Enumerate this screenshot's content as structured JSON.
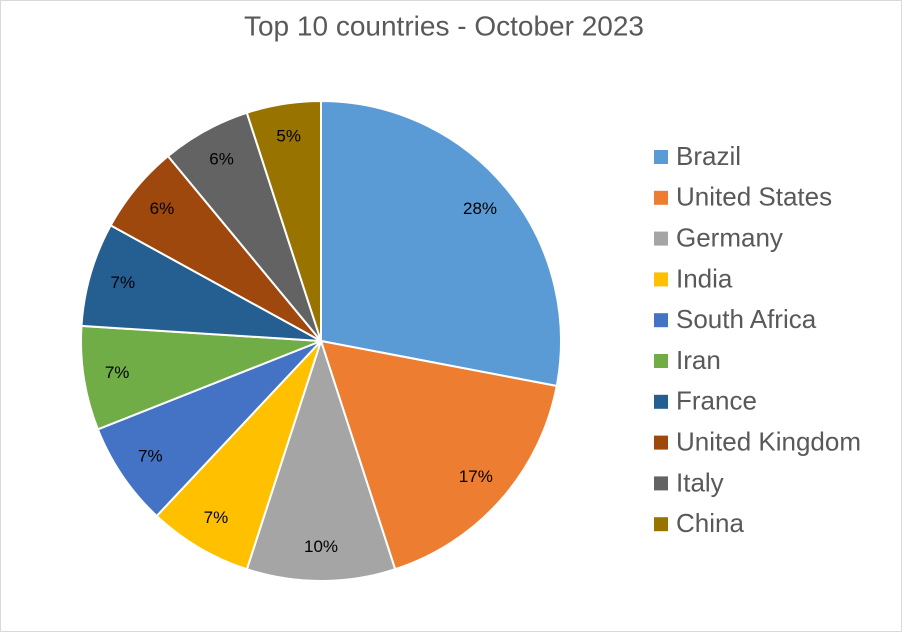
{
  "chart_data": {
    "type": "pie",
    "title": "Top 10 countries - October 2023",
    "categories": [
      "Brazil",
      "United States",
      "Germany",
      "India",
      "South Africa",
      "Iran",
      "France",
      "United Kingdom",
      "Italy",
      "China"
    ],
    "values": [
      28,
      17,
      10,
      7,
      7,
      7,
      7,
      6,
      6,
      5
    ],
    "value_labels": [
      "28%",
      "17%",
      "10%",
      "7%",
      "7%",
      "7%",
      "7%",
      "6%",
      "6%",
      "5%"
    ],
    "colors": [
      "#5b9bd5",
      "#ed7d31",
      "#a5a5a5",
      "#ffc000",
      "#4472c4",
      "#70ad47",
      "#255e91",
      "#9e480e",
      "#636363",
      "#997300"
    ],
    "legend": "right"
  }
}
